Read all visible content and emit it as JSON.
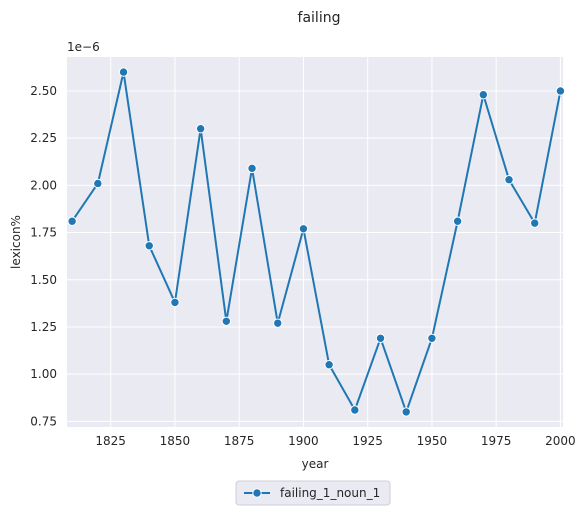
{
  "chart_data": {
    "type": "line",
    "title": "failing",
    "xlabel": "year",
    "ylabel": "lexicon%",
    "y_offset_label": "1e−6",
    "xlim": [
      1808,
      2001
    ],
    "ylim": [
      0.72,
      2.68
    ],
    "x_ticks": [
      1825,
      1850,
      1875,
      1900,
      1925,
      1950,
      1975,
      2000
    ],
    "y_ticks": [
      0.75,
      1.0,
      1.25,
      1.5,
      1.75,
      2.0,
      2.25,
      2.5
    ],
    "y_tick_labels": [
      "0.75",
      "1.00",
      "1.25",
      "1.50",
      "1.75",
      "2.00",
      "2.25",
      "2.50"
    ],
    "grid": true,
    "legend_position": "bottom-center",
    "series": [
      {
        "name": "failing_1_noun_1",
        "color": "#1f77b4",
        "marker": "circle",
        "x": [
          1810,
          1820,
          1830,
          1840,
          1850,
          1860,
          1870,
          1880,
          1890,
          1900,
          1910,
          1920,
          1930,
          1940,
          1950,
          1960,
          1970,
          1980,
          1990,
          2000
        ],
        "y": [
          1.81,
          2.01,
          2.6,
          1.68,
          1.38,
          2.3,
          1.28,
          2.09,
          1.27,
          1.77,
          1.05,
          0.81,
          1.19,
          0.8,
          1.19,
          1.81,
          2.48,
          2.03,
          1.8,
          2.5
        ]
      }
    ]
  }
}
